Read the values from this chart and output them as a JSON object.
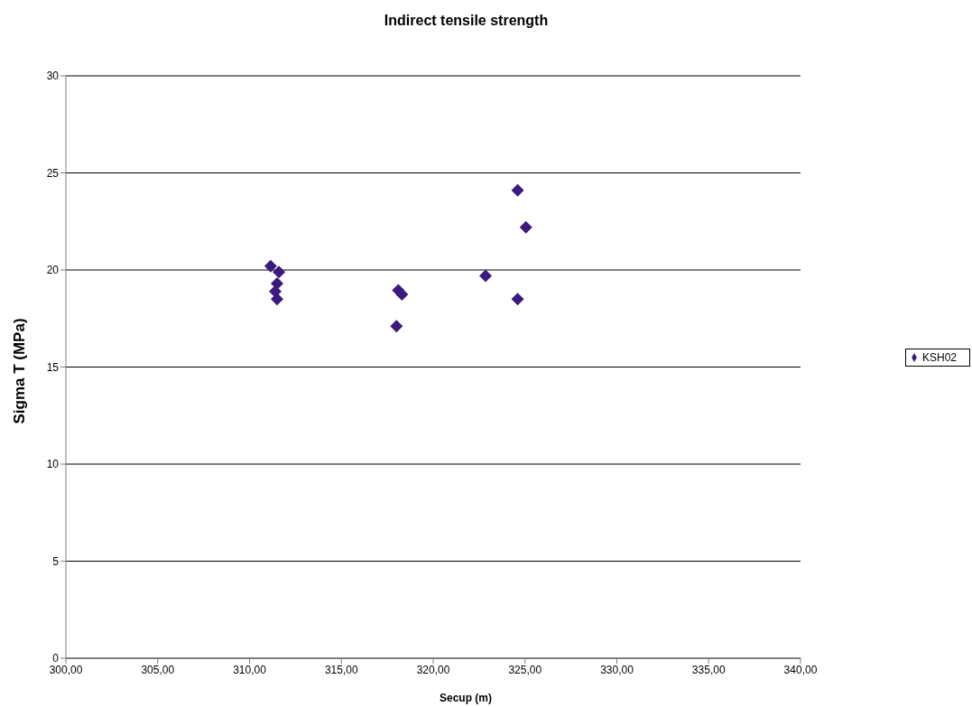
{
  "chart_data": {
    "type": "scatter",
    "title": "Indirect tensile strength",
    "xlabel": "Secup (m)",
    "ylabel": "Sigma T (MPa)",
    "series": [
      {
        "name": "KSH02",
        "color": "#3b1a7e",
        "x": [
          311.15,
          311.6,
          311.5,
          311.4,
          311.5,
          318.0,
          318.1,
          318.3,
          322.85,
          324.6,
          325.05,
          324.6
        ],
        "values": [
          20.2,
          19.9,
          19.3,
          18.9,
          18.5,
          17.1,
          18.95,
          18.75,
          19.7,
          24.1,
          22.2,
          18.5
        ]
      }
    ],
    "xlim": [
      300,
      340
    ],
    "xticks": [
      {
        "value": 300,
        "label": "300,00"
      },
      {
        "value": 305,
        "label": "305,00"
      },
      {
        "value": 310,
        "label": "310,00"
      },
      {
        "value": 315,
        "label": "315,00"
      },
      {
        "value": 320,
        "label": "320,00"
      },
      {
        "value": 325,
        "label": "325,00"
      },
      {
        "value": 330,
        "label": "330,00"
      },
      {
        "value": 335,
        "label": "335,00"
      },
      {
        "value": 340,
        "label": "340,00"
      }
    ],
    "ylim": [
      0,
      30
    ],
    "yticks": [
      0,
      5,
      10,
      15,
      20,
      25,
      30
    ],
    "grid": "y",
    "legend": "right",
    "marker": "diamond"
  }
}
